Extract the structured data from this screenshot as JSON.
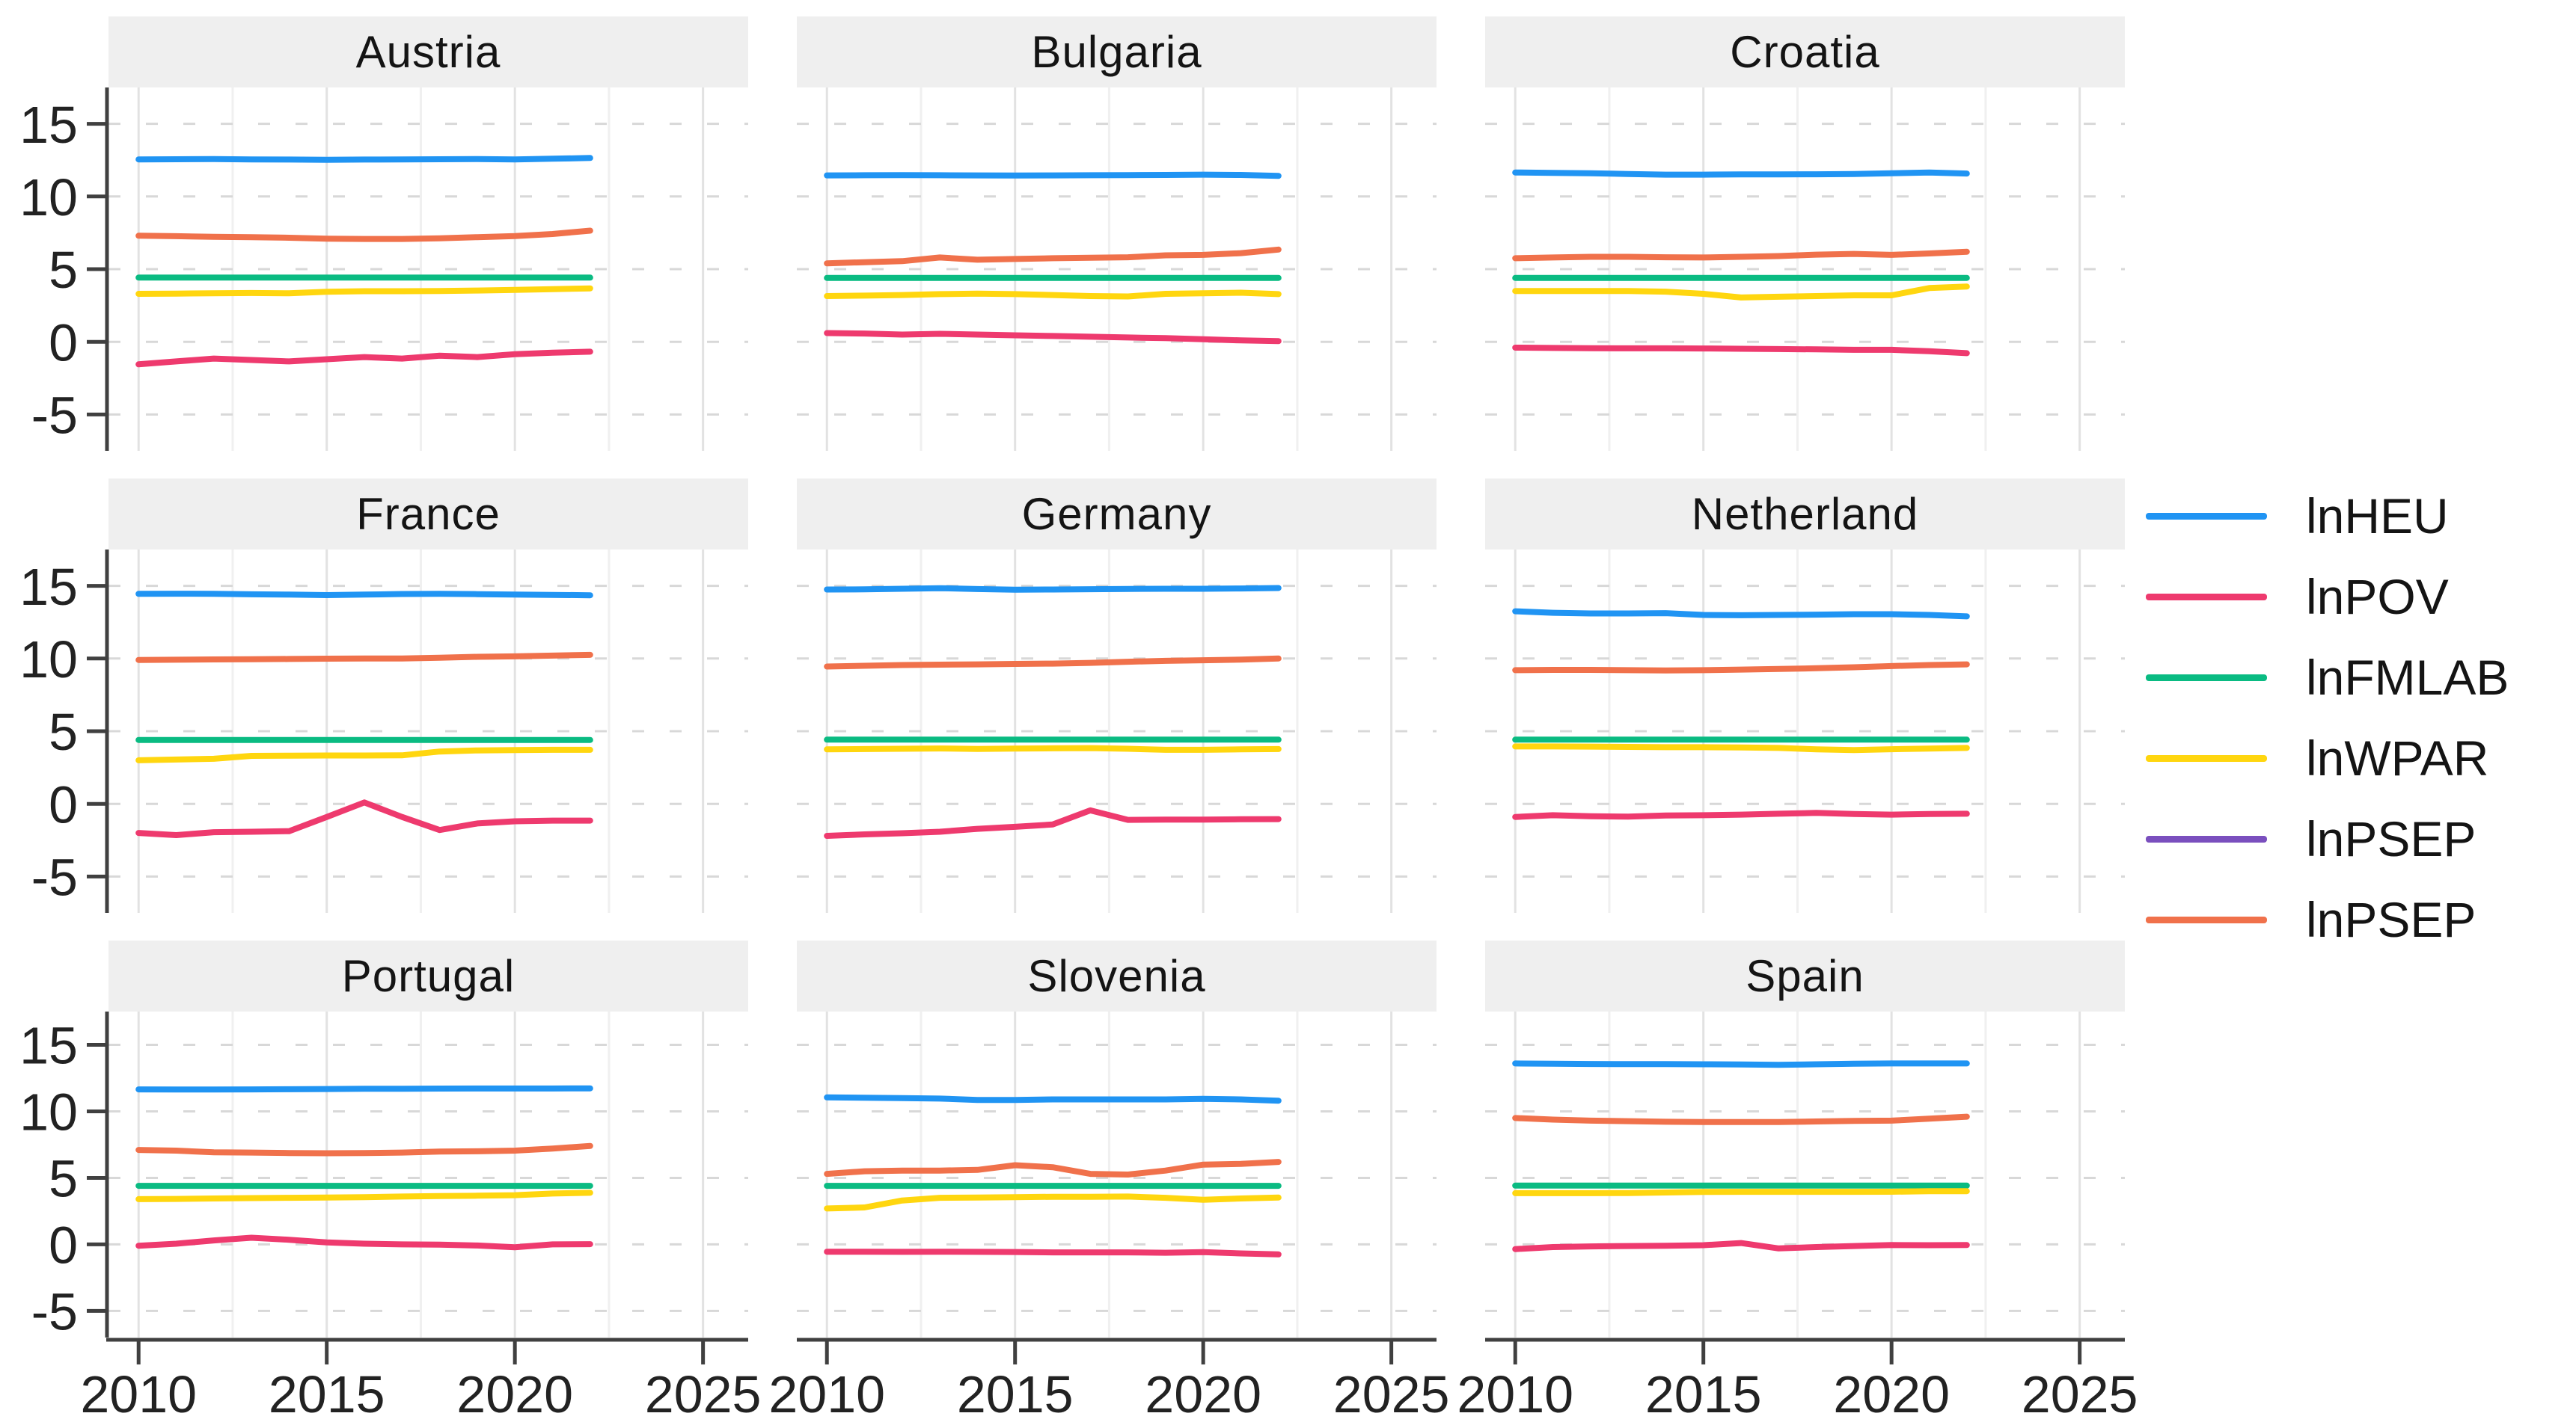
{
  "figure": {
    "description": "Faceted time-series line chart of log-transformed indicators for nine European countries, 2010-2022",
    "strip_background": "#efefef",
    "axis_color": "#404040",
    "grid_major_color": "#e2e2e2",
    "grid_minor_color": "#f0f0f0",
    "grid_dashed_color": "#d8d8d8"
  },
  "axes": {
    "x_tick_labels": [
      "2010",
      "2015",
      "2020",
      "2025"
    ],
    "y_tick_labels": [
      "15",
      "10",
      "5",
      "0",
      "-5"
    ]
  },
  "legend": {
    "items": [
      {
        "label": "lnHEU",
        "color": "#2094f3"
      },
      {
        "label": "lnPOV",
        "color": "#ee3a6e"
      },
      {
        "label": "lnFMLAB",
        "color": "#0abb82"
      },
      {
        "label": "lnWPAR",
        "color": "#ffd60f"
      },
      {
        "label": "lnPSEP",
        "color": "#7a4fbe"
      },
      {
        "label": "lnPSEP",
        "color": "#f0714b"
      }
    ]
  },
  "chart_data": {
    "type": "line",
    "legend_position": "right",
    "x": [
      2010,
      2011,
      2012,
      2013,
      2014,
      2015,
      2016,
      2017,
      2018,
      2019,
      2020,
      2021,
      2022
    ],
    "x_axis": {
      "ticks": [
        2010,
        2015,
        2020,
        2025
      ],
      "range": [
        2009.2,
        2026.2
      ]
    },
    "y_axis": {
      "ticks": [
        15,
        10,
        5,
        0,
        -5
      ],
      "range": [
        -7.5,
        17.5
      ]
    },
    "grid": {
      "x_minor": [
        2012.5,
        2017.5,
        2022.5
      ],
      "y_dashed_at_ticks": true
    },
    "palette": {
      "lnHEU": "#2094f3",
      "lnPOV": "#ee3a6e",
      "lnFMLAB": "#0abb82",
      "lnWPAR": "#ffd60f",
      "lnPSEP": "#f0714b"
    },
    "series_order": [
      "lnHEU",
      "lnPSEP",
      "lnFMLAB",
      "lnWPAR",
      "lnPOV"
    ],
    "note_visible_series": "Purple lnPSEP legend entry has no separately visible line in panels (overplotted by orange lnPSEP)",
    "facets": [
      {
        "title": "Austria",
        "series": {
          "lnHEU": [
            12.55,
            12.56,
            12.57,
            12.55,
            12.54,
            12.52,
            12.54,
            12.55,
            12.56,
            12.57,
            12.55,
            12.6,
            12.65
          ],
          "lnPSEP": [
            7.3,
            7.27,
            7.22,
            7.2,
            7.16,
            7.1,
            7.08,
            7.08,
            7.12,
            7.2,
            7.28,
            7.42,
            7.65
          ],
          "lnFMLAB": [
            4.42,
            4.42,
            4.42,
            4.42,
            4.42,
            4.42,
            4.42,
            4.42,
            4.42,
            4.42,
            4.42,
            4.42,
            4.42
          ],
          "lnWPAR": [
            3.3,
            3.32,
            3.34,
            3.36,
            3.34,
            3.44,
            3.48,
            3.48,
            3.5,
            3.53,
            3.57,
            3.62,
            3.68
          ],
          "lnPOV": [
            -1.55,
            -1.35,
            -1.15,
            -1.25,
            -1.35,
            -1.2,
            -1.05,
            -1.15,
            -0.95,
            -1.05,
            -0.85,
            -0.75,
            -0.68
          ]
        }
      },
      {
        "title": "Bulgaria",
        "series": {
          "lnHEU": [
            11.45,
            11.46,
            11.47,
            11.46,
            11.45,
            11.44,
            11.45,
            11.46,
            11.47,
            11.48,
            11.5,
            11.48,
            11.42
          ],
          "lnPSEP": [
            5.4,
            5.48,
            5.55,
            5.8,
            5.65,
            5.7,
            5.75,
            5.78,
            5.82,
            5.95,
            5.98,
            6.1,
            6.35
          ],
          "lnFMLAB": [
            4.4,
            4.4,
            4.4,
            4.4,
            4.4,
            4.4,
            4.4,
            4.4,
            4.4,
            4.4,
            4.4,
            4.4,
            4.4
          ],
          "lnWPAR": [
            3.15,
            3.18,
            3.22,
            3.28,
            3.32,
            3.28,
            3.22,
            3.15,
            3.12,
            3.3,
            3.34,
            3.38,
            3.28
          ],
          "lnPOV": [
            0.6,
            0.57,
            0.5,
            0.55,
            0.5,
            0.45,
            0.4,
            0.35,
            0.3,
            0.25,
            0.18,
            0.1,
            0.05
          ]
        }
      },
      {
        "title": "Croatia",
        "series": {
          "lnHEU": [
            11.65,
            11.62,
            11.6,
            11.55,
            11.5,
            11.5,
            11.52,
            11.52,
            11.53,
            11.55,
            11.6,
            11.65,
            11.58
          ],
          "lnPSEP": [
            5.75,
            5.8,
            5.85,
            5.85,
            5.82,
            5.8,
            5.85,
            5.9,
            6.0,
            6.05,
            5.98,
            6.08,
            6.2
          ],
          "lnFMLAB": [
            4.4,
            4.4,
            4.4,
            4.4,
            4.4,
            4.4,
            4.4,
            4.4,
            4.4,
            4.4,
            4.4,
            4.4,
            4.4
          ],
          "lnWPAR": [
            3.5,
            3.5,
            3.5,
            3.5,
            3.45,
            3.3,
            3.05,
            3.1,
            3.15,
            3.2,
            3.2,
            3.7,
            3.8
          ],
          "lnPOV": [
            -0.4,
            -0.42,
            -0.44,
            -0.45,
            -0.45,
            -0.46,
            -0.48,
            -0.5,
            -0.52,
            -0.55,
            -0.55,
            -0.65,
            -0.78
          ]
        }
      },
      {
        "title": "France",
        "series": {
          "lnHEU": [
            14.45,
            14.46,
            14.45,
            14.42,
            14.4,
            14.36,
            14.4,
            14.44,
            14.45,
            14.43,
            14.4,
            14.38,
            14.35
          ],
          "lnPSEP": [
            9.9,
            9.92,
            9.94,
            9.95,
            9.97,
            9.99,
            10.0,
            10.0,
            10.05,
            10.12,
            10.15,
            10.2,
            10.25
          ],
          "lnFMLAB": [
            4.4,
            4.4,
            4.4,
            4.4,
            4.4,
            4.4,
            4.4,
            4.4,
            4.4,
            4.4,
            4.4,
            4.4,
            4.4
          ],
          "lnWPAR": [
            3.0,
            3.05,
            3.1,
            3.3,
            3.32,
            3.33,
            3.33,
            3.34,
            3.6,
            3.68,
            3.7,
            3.72,
            3.72
          ],
          "lnPOV": [
            -2.0,
            -2.15,
            -1.95,
            -1.92,
            -1.88,
            -0.9,
            0.1,
            -0.9,
            -1.8,
            -1.35,
            -1.2,
            -1.15,
            -1.15
          ]
        }
      },
      {
        "title": "Germany",
        "series": {
          "lnHEU": [
            14.75,
            14.76,
            14.8,
            14.84,
            14.78,
            14.74,
            14.75,
            14.77,
            14.79,
            14.8,
            14.8,
            14.82,
            14.85
          ],
          "lnPSEP": [
            9.45,
            9.5,
            9.55,
            9.58,
            9.6,
            9.63,
            9.65,
            9.7,
            9.78,
            9.84,
            9.88,
            9.93,
            10.0
          ],
          "lnFMLAB": [
            4.42,
            4.42,
            4.42,
            4.42,
            4.42,
            4.42,
            4.42,
            4.42,
            4.42,
            4.42,
            4.42,
            4.42,
            4.42
          ],
          "lnWPAR": [
            3.75,
            3.77,
            3.79,
            3.81,
            3.78,
            3.8,
            3.82,
            3.84,
            3.79,
            3.72,
            3.72,
            3.75,
            3.77
          ],
          "lnPOV": [
            -2.2,
            -2.1,
            -2.02,
            -1.92,
            -1.72,
            -1.58,
            -1.42,
            -0.45,
            -1.1,
            -1.08,
            -1.08,
            -1.06,
            -1.05
          ]
        }
      },
      {
        "title": "Netherland",
        "series": {
          "lnHEU": [
            13.25,
            13.15,
            13.1,
            13.1,
            13.12,
            13.0,
            12.98,
            13.0,
            13.02,
            13.05,
            13.05,
            13.0,
            12.9
          ],
          "lnPSEP": [
            9.2,
            9.22,
            9.22,
            9.2,
            9.18,
            9.2,
            9.24,
            9.28,
            9.33,
            9.4,
            9.48,
            9.55,
            9.6
          ],
          "lnFMLAB": [
            4.42,
            4.42,
            4.42,
            4.42,
            4.42,
            4.42,
            4.42,
            4.42,
            4.42,
            4.42,
            4.42,
            4.42,
            4.42
          ],
          "lnWPAR": [
            3.95,
            3.95,
            3.94,
            3.92,
            3.9,
            3.9,
            3.88,
            3.85,
            3.75,
            3.7,
            3.76,
            3.8,
            3.85
          ],
          "lnPOV": [
            -0.9,
            -0.78,
            -0.85,
            -0.88,
            -0.8,
            -0.78,
            -0.74,
            -0.68,
            -0.62,
            -0.7,
            -0.74,
            -0.7,
            -0.68
          ]
        }
      },
      {
        "title": "Portugal",
        "series": {
          "lnHEU": [
            11.65,
            11.64,
            11.64,
            11.65,
            11.66,
            11.68,
            11.7,
            11.7,
            11.71,
            11.72,
            11.72,
            11.72,
            11.73
          ],
          "lnPSEP": [
            7.1,
            7.05,
            6.92,
            6.9,
            6.87,
            6.85,
            6.86,
            6.9,
            6.98,
            7.0,
            7.05,
            7.2,
            7.4
          ],
          "lnFMLAB": [
            4.4,
            4.4,
            4.4,
            4.4,
            4.4,
            4.4,
            4.4,
            4.4,
            4.4,
            4.4,
            4.4,
            4.4,
            4.4
          ],
          "lnWPAR": [
            3.4,
            3.42,
            3.45,
            3.48,
            3.5,
            3.52,
            3.55,
            3.6,
            3.64,
            3.66,
            3.7,
            3.82,
            3.88
          ],
          "lnPOV": [
            -0.1,
            0.05,
            0.3,
            0.5,
            0.35,
            0.15,
            0.05,
            0.0,
            -0.02,
            -0.08,
            -0.22,
            0.0,
            0.02
          ]
        }
      },
      {
        "title": "Slovenia",
        "series": {
          "lnHEU": [
            11.05,
            11.02,
            11.0,
            10.96,
            10.86,
            10.86,
            10.9,
            10.9,
            10.9,
            10.9,
            10.94,
            10.9,
            10.8
          ],
          "lnPSEP": [
            5.3,
            5.5,
            5.55,
            5.55,
            5.6,
            5.95,
            5.8,
            5.3,
            5.25,
            5.55,
            6.0,
            6.05,
            6.2
          ],
          "lnFMLAB": [
            4.4,
            4.4,
            4.4,
            4.4,
            4.4,
            4.4,
            4.4,
            4.4,
            4.4,
            4.4,
            4.4,
            4.4,
            4.4
          ],
          "lnWPAR": [
            2.7,
            2.78,
            3.3,
            3.5,
            3.52,
            3.55,
            3.58,
            3.58,
            3.6,
            3.5,
            3.35,
            3.45,
            3.52
          ],
          "lnPOV": [
            -0.55,
            -0.55,
            -0.56,
            -0.55,
            -0.56,
            -0.57,
            -0.6,
            -0.6,
            -0.6,
            -0.63,
            -0.58,
            -0.68,
            -0.75
          ]
        }
      },
      {
        "title": "Spain",
        "series": {
          "lnHEU": [
            13.6,
            13.58,
            13.56,
            13.55,
            13.55,
            13.54,
            13.52,
            13.5,
            13.54,
            13.58,
            13.6,
            13.6,
            13.6
          ],
          "lnPSEP": [
            9.5,
            9.38,
            9.3,
            9.26,
            9.22,
            9.2,
            9.2,
            9.2,
            9.24,
            9.28,
            9.3,
            9.45,
            9.6
          ],
          "lnFMLAB": [
            4.42,
            4.42,
            4.42,
            4.42,
            4.42,
            4.42,
            4.42,
            4.42,
            4.42,
            4.42,
            4.42,
            4.42,
            4.42
          ],
          "lnWPAR": [
            3.85,
            3.85,
            3.85,
            3.86,
            3.9,
            3.94,
            3.95,
            3.95,
            3.95,
            3.95,
            3.96,
            4.0,
            4.0
          ],
          "lnPOV": [
            -0.35,
            -0.2,
            -0.15,
            -0.12,
            -0.1,
            -0.06,
            0.1,
            -0.3,
            -0.2,
            -0.12,
            -0.05,
            -0.06,
            -0.05
          ]
        }
      }
    ]
  }
}
